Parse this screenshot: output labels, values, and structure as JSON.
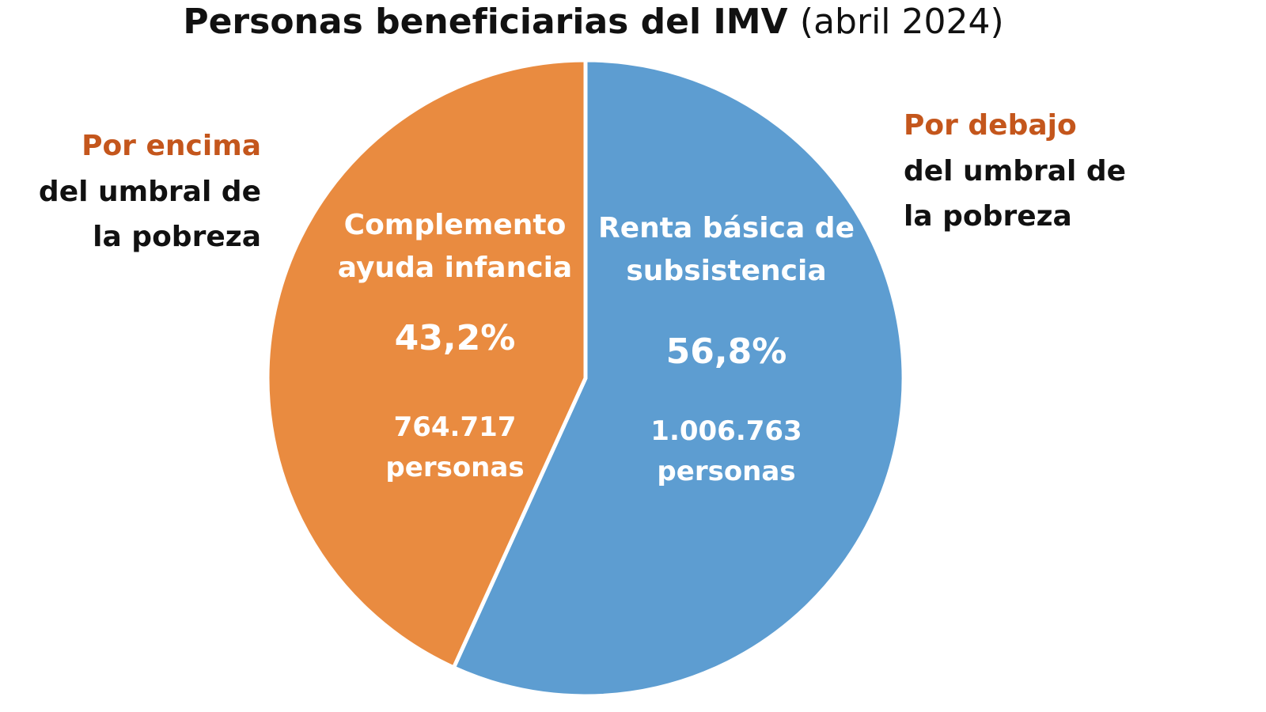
{
  "chart_data": {
    "type": "pie",
    "title": "Personas beneficiarias del IMV",
    "subtitle": "(abril 2024)",
    "categories": [
      "Renta básica de subsistencia",
      "Complemento ayuda infancia"
    ],
    "values": [
      56.8,
      43.2
    ],
    "value_labels": [
      "56,8%",
      "43,2%"
    ],
    "counts": [
      1006763,
      764717
    ],
    "count_labels": [
      "1.006.763 personas",
      "764.717 personas"
    ],
    "colors": [
      "#5d9dd1",
      "#e98b40"
    ],
    "annotations": [
      {
        "highlight": "Por debajo",
        "text": "del umbral de la pobreza",
        "color": "#c4561c"
      },
      {
        "highlight": "Por encima",
        "text": "del umbral de la pobreza",
        "color": "#c4561c"
      }
    ]
  }
}
